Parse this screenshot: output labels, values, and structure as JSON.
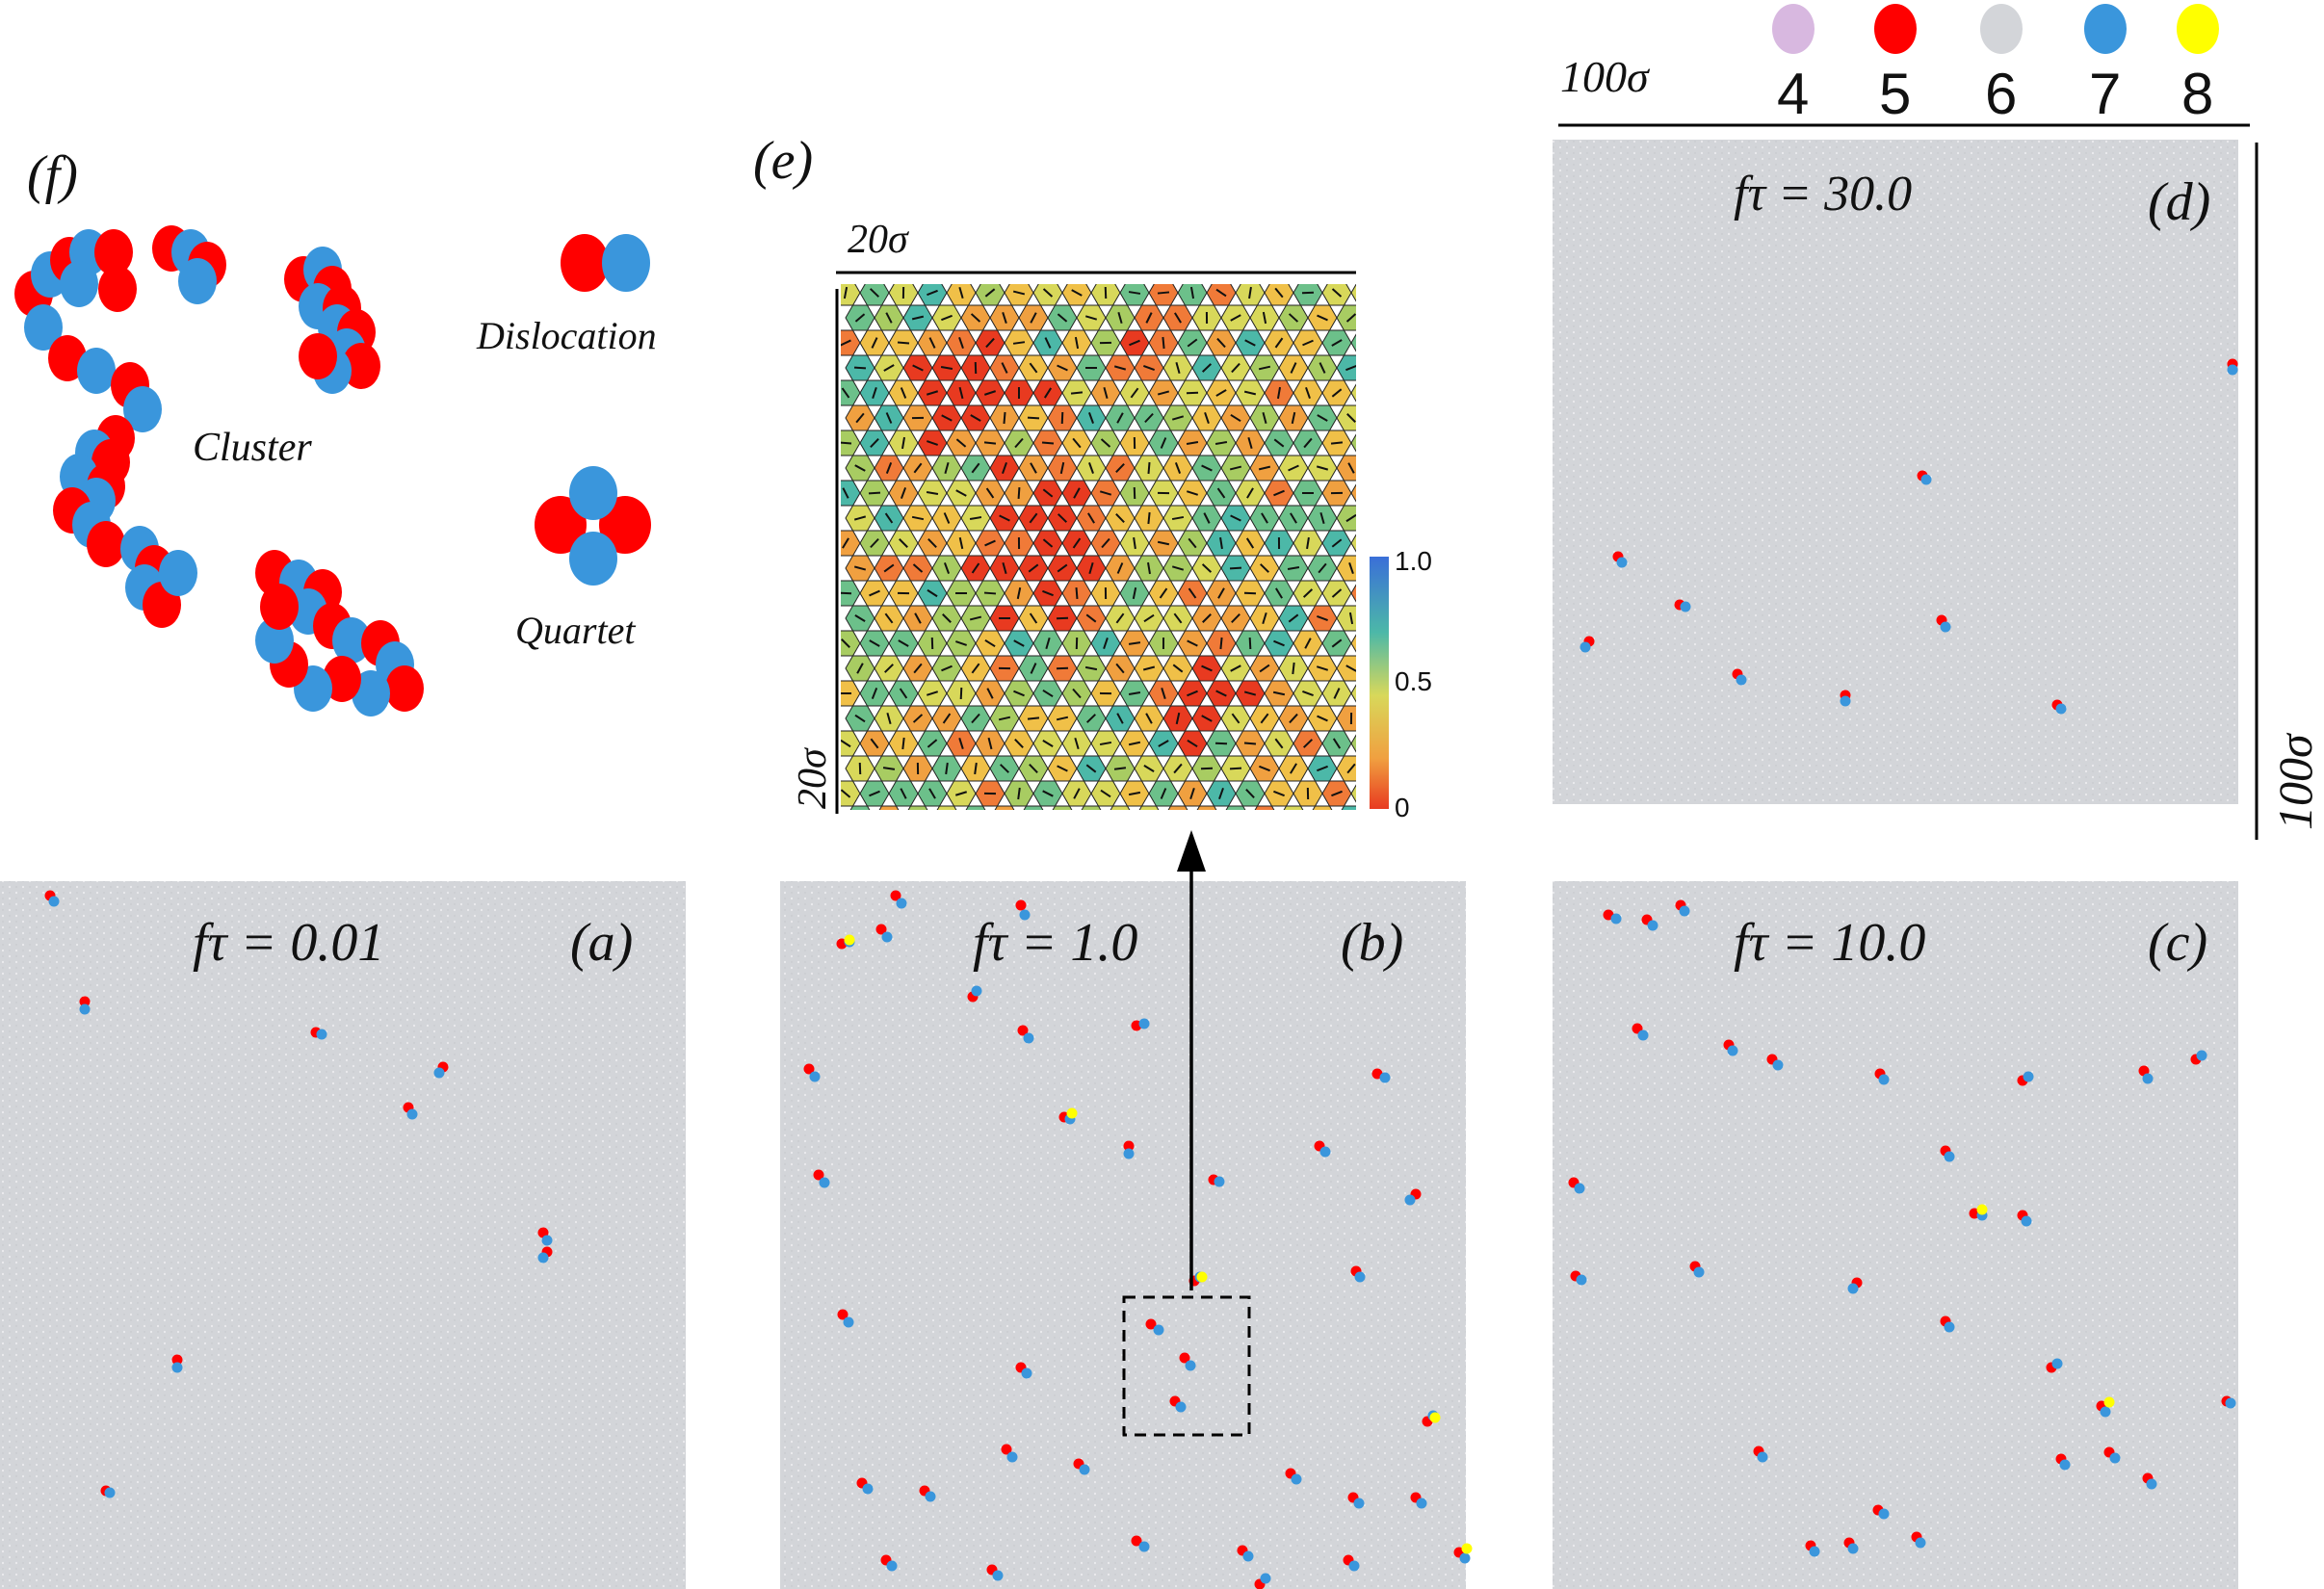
{
  "colors": {
    "c4": "#d8b8e0",
    "c5": "#ff0000",
    "c6": "#d3d5d9",
    "c7": "#3a96dc",
    "c8": "#ffff00",
    "background_panel": "#d3d5d9",
    "axis": "#000000"
  },
  "legend": {
    "scale_label": "100σ",
    "items": [
      {
        "label": "4",
        "color": "#d8b8e0"
      },
      {
        "label": "5",
        "color": "#ff0000"
      },
      {
        "label": "6",
        "color": "#d3d5d9"
      },
      {
        "label": "7",
        "color": "#3a96dc"
      },
      {
        "label": "8",
        "color": "#ffff00"
      }
    ]
  },
  "panels": {
    "a": {
      "tag": "(a)",
      "caption": "fτ  = 0.01"
    },
    "b": {
      "tag": "(b)",
      "caption": "fτ = 1.0"
    },
    "c": {
      "tag": "(c)",
      "caption": "fτ  = 10.0"
    },
    "d": {
      "tag": "(d)",
      "caption": "fτ  = 30.0",
      "scale_label": "100σ"
    },
    "e": {
      "tag": "(e)",
      "top_scale": "20σ",
      "side_scale": "20σ",
      "colorbar": {
        "ticks": [
          "1.0",
          "0.5",
          "0"
        ]
      }
    },
    "f": {
      "tag": "(f)",
      "labels": {
        "cluster": "Cluster",
        "dislocation": "Dislocation",
        "quartet": "Quartet"
      }
    }
  }
}
